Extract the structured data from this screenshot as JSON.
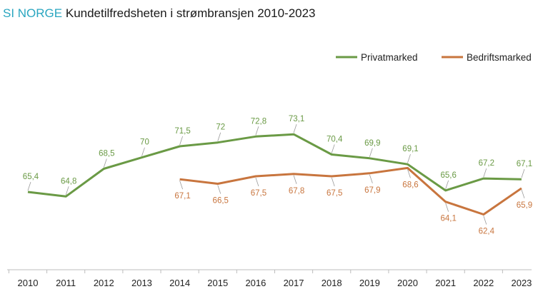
{
  "title": {
    "brand": "SI NORGE",
    "text": "Kundetilfredsheten i strømbransjen 2010-2023"
  },
  "chart_data": {
    "type": "line",
    "title": "SI NORGE Kundetilfredsheten i strømbransjen 2010-2023",
    "xlabel": "",
    "ylabel": "",
    "grid": false,
    "legend_position": "top-right",
    "ylim": [
      60,
      75
    ],
    "categories": [
      "2010",
      "2011",
      "2012",
      "2013",
      "2014",
      "2015",
      "2016",
      "2017",
      "2018",
      "2019",
      "2020",
      "2021",
      "2022",
      "2023"
    ],
    "series": [
      {
        "name": "Privatmarked",
        "color": "#6a9a45",
        "values": [
          65.4,
          64.8,
          68.5,
          70,
          71.5,
          72,
          72.8,
          73.1,
          70.4,
          69.9,
          69.1,
          65.6,
          67.2,
          67.1
        ],
        "labels": [
          "65,4",
          "64,8",
          "68,5",
          "70",
          "71,5",
          "72",
          "72,8",
          "73,1",
          "70,4",
          "69,9",
          "69,1",
          "65,6",
          "67,2",
          "67,1"
        ],
        "label_side": [
          "above",
          "above",
          "above",
          "above",
          "above",
          "above",
          "above",
          "above",
          "above",
          "above",
          "above",
          "above",
          "above",
          "above"
        ]
      },
      {
        "name": "Bedriftsmarked",
        "color": "#c8753e",
        "values": [
          null,
          null,
          null,
          null,
          67.1,
          66.5,
          67.5,
          67.8,
          67.5,
          67.9,
          68.6,
          64.1,
          62.4,
          65.9
        ],
        "labels": [
          null,
          null,
          null,
          null,
          "67,1",
          "66,5",
          "67,5",
          "67,8",
          "67,5",
          "67,9",
          "68,6",
          "64,1",
          "62,4",
          "65,9"
        ],
        "label_side": [
          null,
          null,
          null,
          null,
          "below",
          "below",
          "below",
          "below",
          "below",
          "below",
          "below",
          "below",
          "below",
          "below"
        ]
      }
    ]
  }
}
